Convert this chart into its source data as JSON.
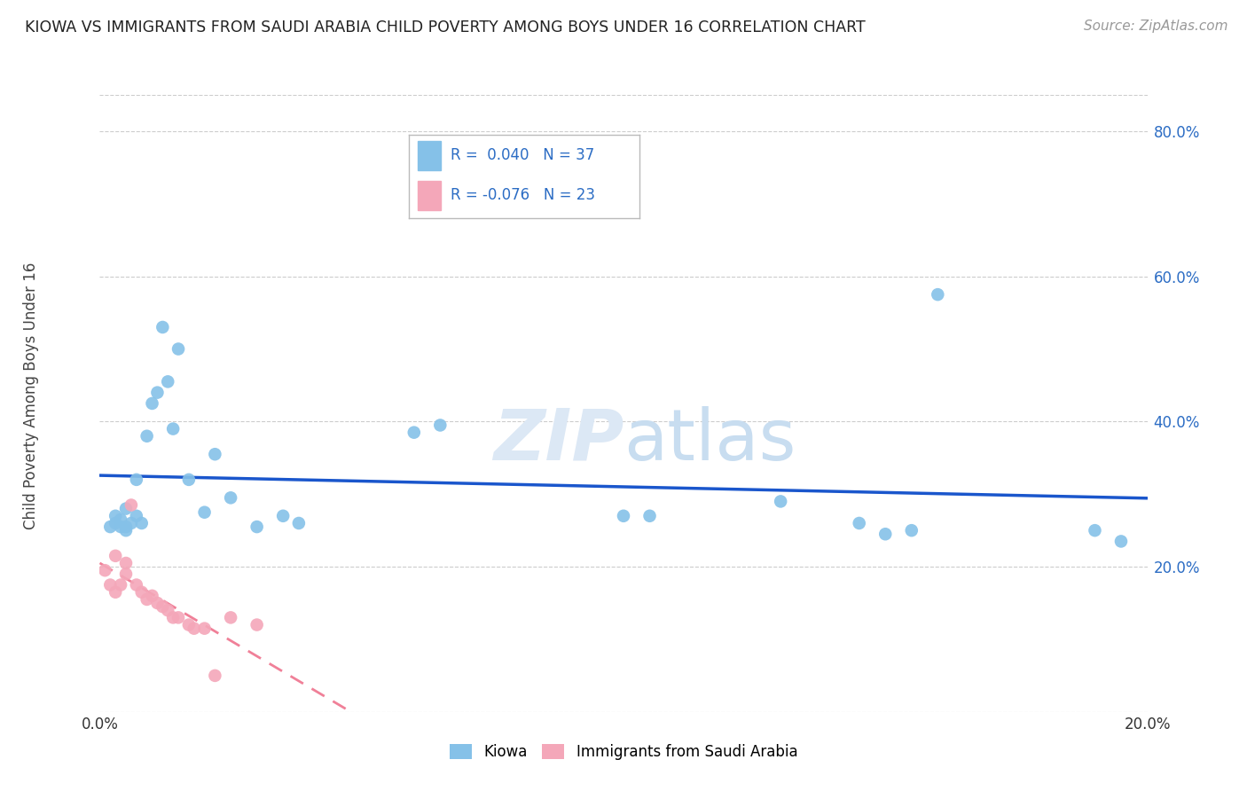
{
  "title": "KIOWA VS IMMIGRANTS FROM SAUDI ARABIA CHILD POVERTY AMONG BOYS UNDER 16 CORRELATION CHART",
  "source": "Source: ZipAtlas.com",
  "ylabel": "Child Poverty Among Boys Under 16",
  "xlim": [
    0.0,
    0.2
  ],
  "ylim": [
    0.0,
    0.85
  ],
  "yticks": [
    0.0,
    0.2,
    0.4,
    0.6,
    0.8
  ],
  "ytick_labels": [
    "",
    "20.0%",
    "40.0%",
    "60.0%",
    "80.0%"
  ],
  "xticks": [
    0.0,
    0.05,
    0.1,
    0.15,
    0.2
  ],
  "xtick_labels": [
    "0.0%",
    "",
    "",
    "",
    "20.0%"
  ],
  "kiowa_color": "#85C1E8",
  "saudi_color": "#F4A7B9",
  "trendline_kiowa_color": "#1A56CC",
  "trendline_saudi_color": "#F08098",
  "background_color": "#ffffff",
  "watermark": "ZIPatlas",
  "legend_kiowa_R": "R =  0.040",
  "legend_kiowa_N": "N = 37",
  "legend_saudi_R": "R = -0.076",
  "legend_saudi_N": "N = 23",
  "legend_label_kiowa": "Kiowa",
  "legend_label_saudi": "Immigrants from Saudi Arabia",
  "kiowa_x": [
    0.002,
    0.003,
    0.003,
    0.004,
    0.004,
    0.005,
    0.005,
    0.005,
    0.006,
    0.007,
    0.007,
    0.008,
    0.009,
    0.01,
    0.011,
    0.012,
    0.013,
    0.014,
    0.015,
    0.017,
    0.02,
    0.022,
    0.025,
    0.03,
    0.035,
    0.038,
    0.06,
    0.065,
    0.1,
    0.105,
    0.13,
    0.145,
    0.15,
    0.155,
    0.16,
    0.19,
    0.195
  ],
  "kiowa_y": [
    0.255,
    0.26,
    0.27,
    0.255,
    0.265,
    0.25,
    0.255,
    0.28,
    0.26,
    0.27,
    0.32,
    0.26,
    0.38,
    0.425,
    0.44,
    0.53,
    0.455,
    0.39,
    0.5,
    0.32,
    0.275,
    0.355,
    0.295,
    0.255,
    0.27,
    0.26,
    0.385,
    0.395,
    0.27,
    0.27,
    0.29,
    0.26,
    0.245,
    0.25,
    0.575,
    0.25,
    0.235
  ],
  "saudi_x": [
    0.001,
    0.002,
    0.003,
    0.003,
    0.004,
    0.005,
    0.005,
    0.006,
    0.007,
    0.008,
    0.009,
    0.01,
    0.011,
    0.012,
    0.013,
    0.014,
    0.015,
    0.017,
    0.018,
    0.02,
    0.022,
    0.025,
    0.03
  ],
  "saudi_y": [
    0.195,
    0.175,
    0.215,
    0.165,
    0.175,
    0.205,
    0.19,
    0.285,
    0.175,
    0.165,
    0.155,
    0.16,
    0.15,
    0.145,
    0.14,
    0.13,
    0.13,
    0.12,
    0.115,
    0.115,
    0.05,
    0.13,
    0.12
  ]
}
